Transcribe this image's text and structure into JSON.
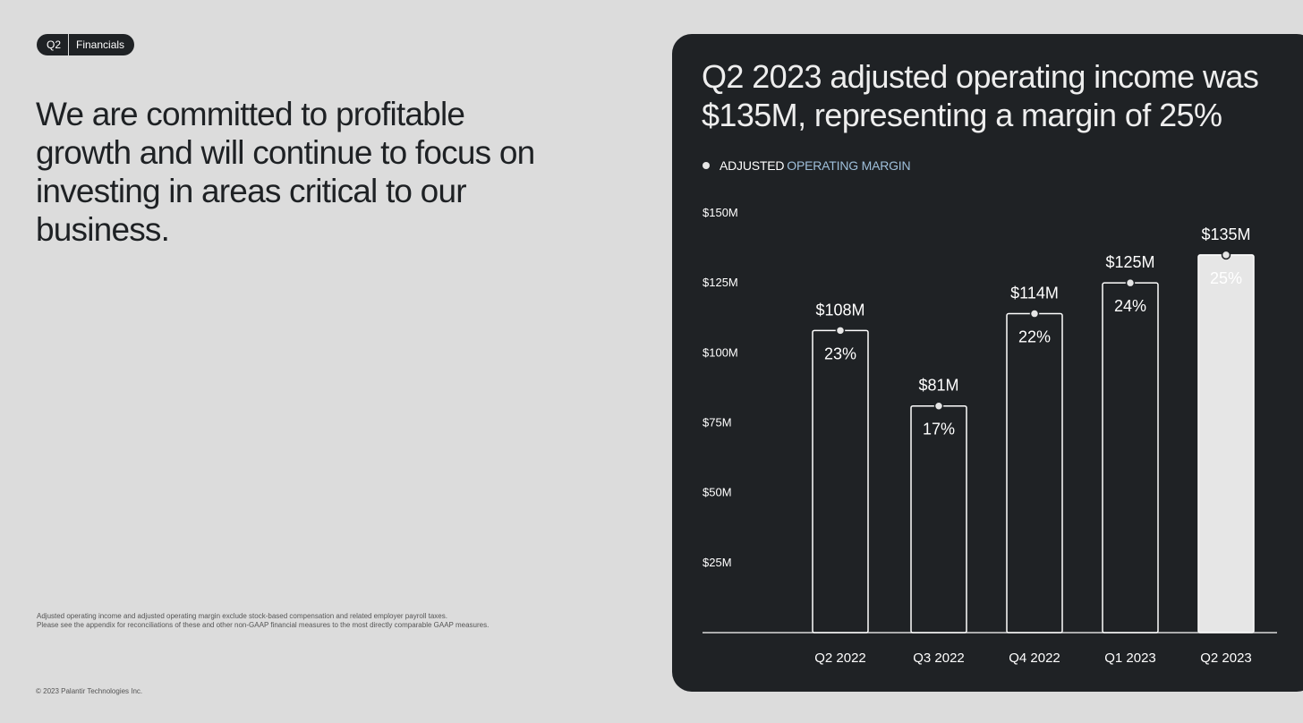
{
  "tag": {
    "quarter": "Q2",
    "section": "Financials"
  },
  "headline": "We are committed to profitable growth and will continue to focus on investing in areas critical to our business.",
  "footnote": [
    "Adjusted operating income and adjusted operating margin exclude stock-based compensation and related employer payroll taxes.",
    "Please see the appendix for reconciliations of these and other non-GAAP financial measures to the most directly comparable GAAP measures."
  ],
  "copyright": "© 2023 Palantir Technologies Inc.",
  "panel": {
    "title": "Q2 2023 adjusted operating income was $135M, representing a margin of 25%",
    "legend_prefix": "ADJUSTED",
    "legend_suffix": "OPERATING MARGIN",
    "legend_prefix_color": "#ffffff",
    "legend_suffix_color": "#9fbfda"
  },
  "chart_data": {
    "type": "bar",
    "categories": [
      "Q2 2022",
      "Q3 2022",
      "Q4 2022",
      "Q1 2023",
      "Q2 2023"
    ],
    "values": [
      108,
      81,
      114,
      125,
      135
    ],
    "value_labels": [
      "$108M",
      "$81M",
      "$114M",
      "$125M",
      "$135M"
    ],
    "margins": [
      "23%",
      "17%",
      "22%",
      "24%",
      "25%"
    ],
    "y_ticks": [
      25,
      50,
      75,
      100,
      125,
      150
    ],
    "y_tick_labels": [
      "$25M",
      "$50M",
      "$75M",
      "$100M",
      "$125M",
      "$150M"
    ],
    "ylim": [
      0,
      150
    ],
    "highlight_index": 4,
    "colors": {
      "bar_outline": "#ffffff",
      "highlight_fill": "#e6e6e6",
      "highlight_text": "#1f2225"
    }
  }
}
